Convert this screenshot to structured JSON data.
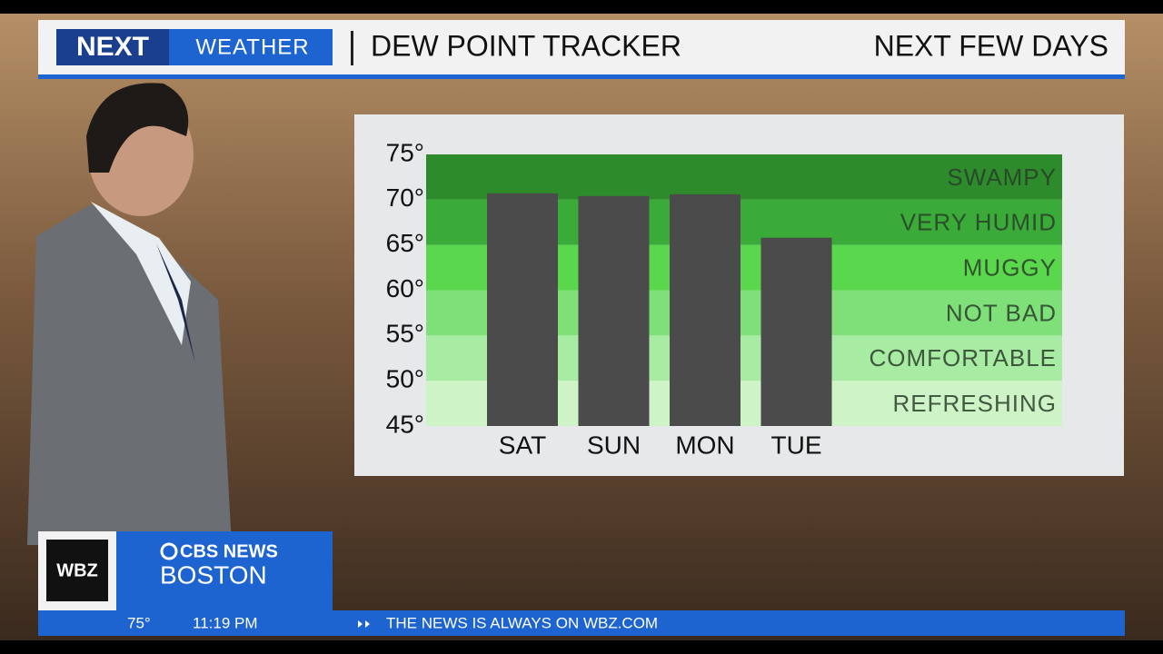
{
  "header": {
    "logo_next": "NEXT",
    "logo_weather": "WEATHER",
    "title": "DEW POINT TRACKER",
    "period": "NEXT FEW DAYS"
  },
  "chart_data": {
    "type": "bar",
    "categories": [
      "SAT",
      "SUN",
      "MON",
      "TUE"
    ],
    "values": [
      70.7,
      70.4,
      70.6,
      65.8
    ],
    "color": "#4b4b4b",
    "ylim": [
      45,
      75
    ],
    "yticks": [
      {
        "value": 45,
        "label": "45°"
      },
      {
        "value": 50,
        "label": "50°"
      },
      {
        "value": 55,
        "label": "55°"
      },
      {
        "value": 60,
        "label": "60°"
      },
      {
        "value": 65,
        "label": "65°"
      },
      {
        "value": 70,
        "label": "70°"
      },
      {
        "value": 75,
        "label": "75°"
      }
    ],
    "bands": [
      {
        "label": "REFRESHING",
        "from": 45,
        "to": 50,
        "color": "#cdf3c6"
      },
      {
        "label": "COMFORTABLE",
        "from": 50,
        "to": 55,
        "color": "#a8eba2"
      },
      {
        "label": "NOT BAD",
        "from": 55,
        "to": 60,
        "color": "#7fe07a"
      },
      {
        "label": "MUGGY",
        "from": 60,
        "to": 65,
        "color": "#5ad74c"
      },
      {
        "label": "VERY HUMID",
        "from": 65,
        "to": 70,
        "color": "#3aab38"
      },
      {
        "label": "SWAMPY",
        "from": 70,
        "to": 75,
        "color": "#2d8b2c"
      }
    ]
  },
  "station": {
    "call": "WBZ",
    "network": "CBS NEWS",
    "city": "BOSTON"
  },
  "ticker": {
    "temperature": "75°",
    "time": "11:19 PM",
    "message": "THE NEWS IS ALWAYS ON WBZ.COM"
  }
}
